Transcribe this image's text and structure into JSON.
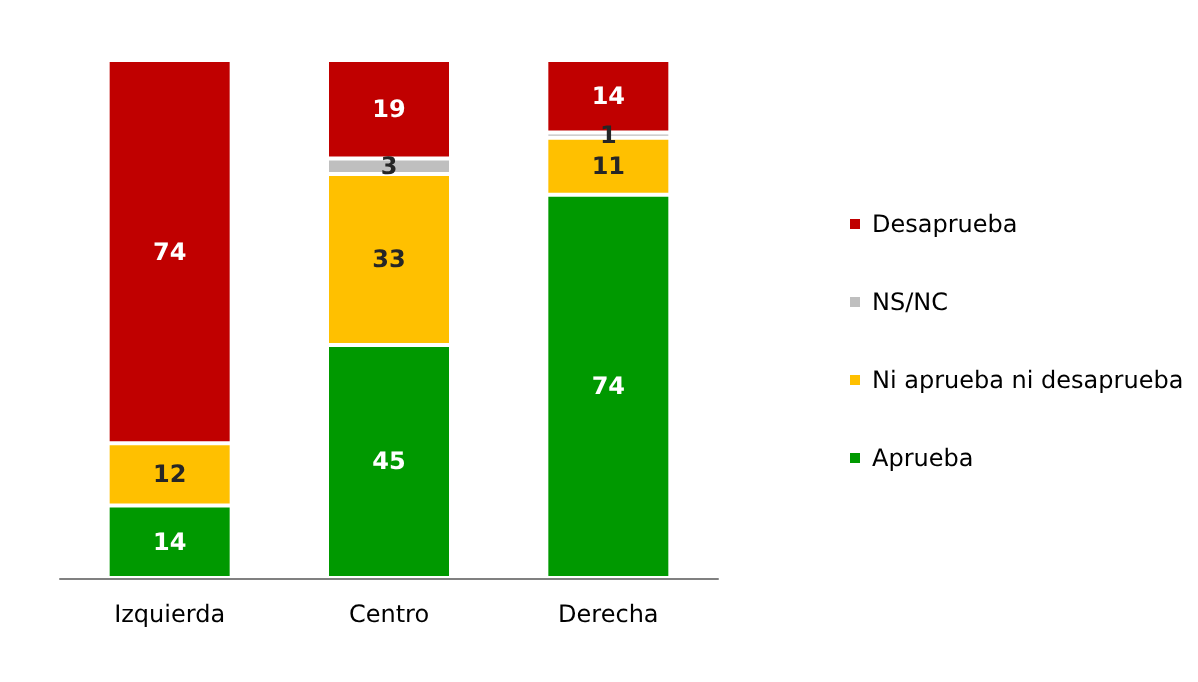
{
  "chart_data": {
    "type": "bar",
    "stacked": true,
    "data_labels": true,
    "legend": "right",
    "categories": [
      "Izquierda",
      "Centro",
      "Derecha"
    ],
    "series": [
      {
        "name": "Aprueba",
        "color": "#009900",
        "values": [
          14,
          45,
          74
        ]
      },
      {
        "name": "Ni aprueba ni desaprueba",
        "color": "#ffc000",
        "values": [
          12,
          33,
          11
        ]
      },
      {
        "name": "NS/NC",
        "color": "#bfbfbf",
        "values": [
          null,
          3,
          1
        ]
      },
      {
        "name": "Desaprueba",
        "color": "#c00000",
        "values": [
          74,
          19,
          14
        ]
      }
    ]
  }
}
